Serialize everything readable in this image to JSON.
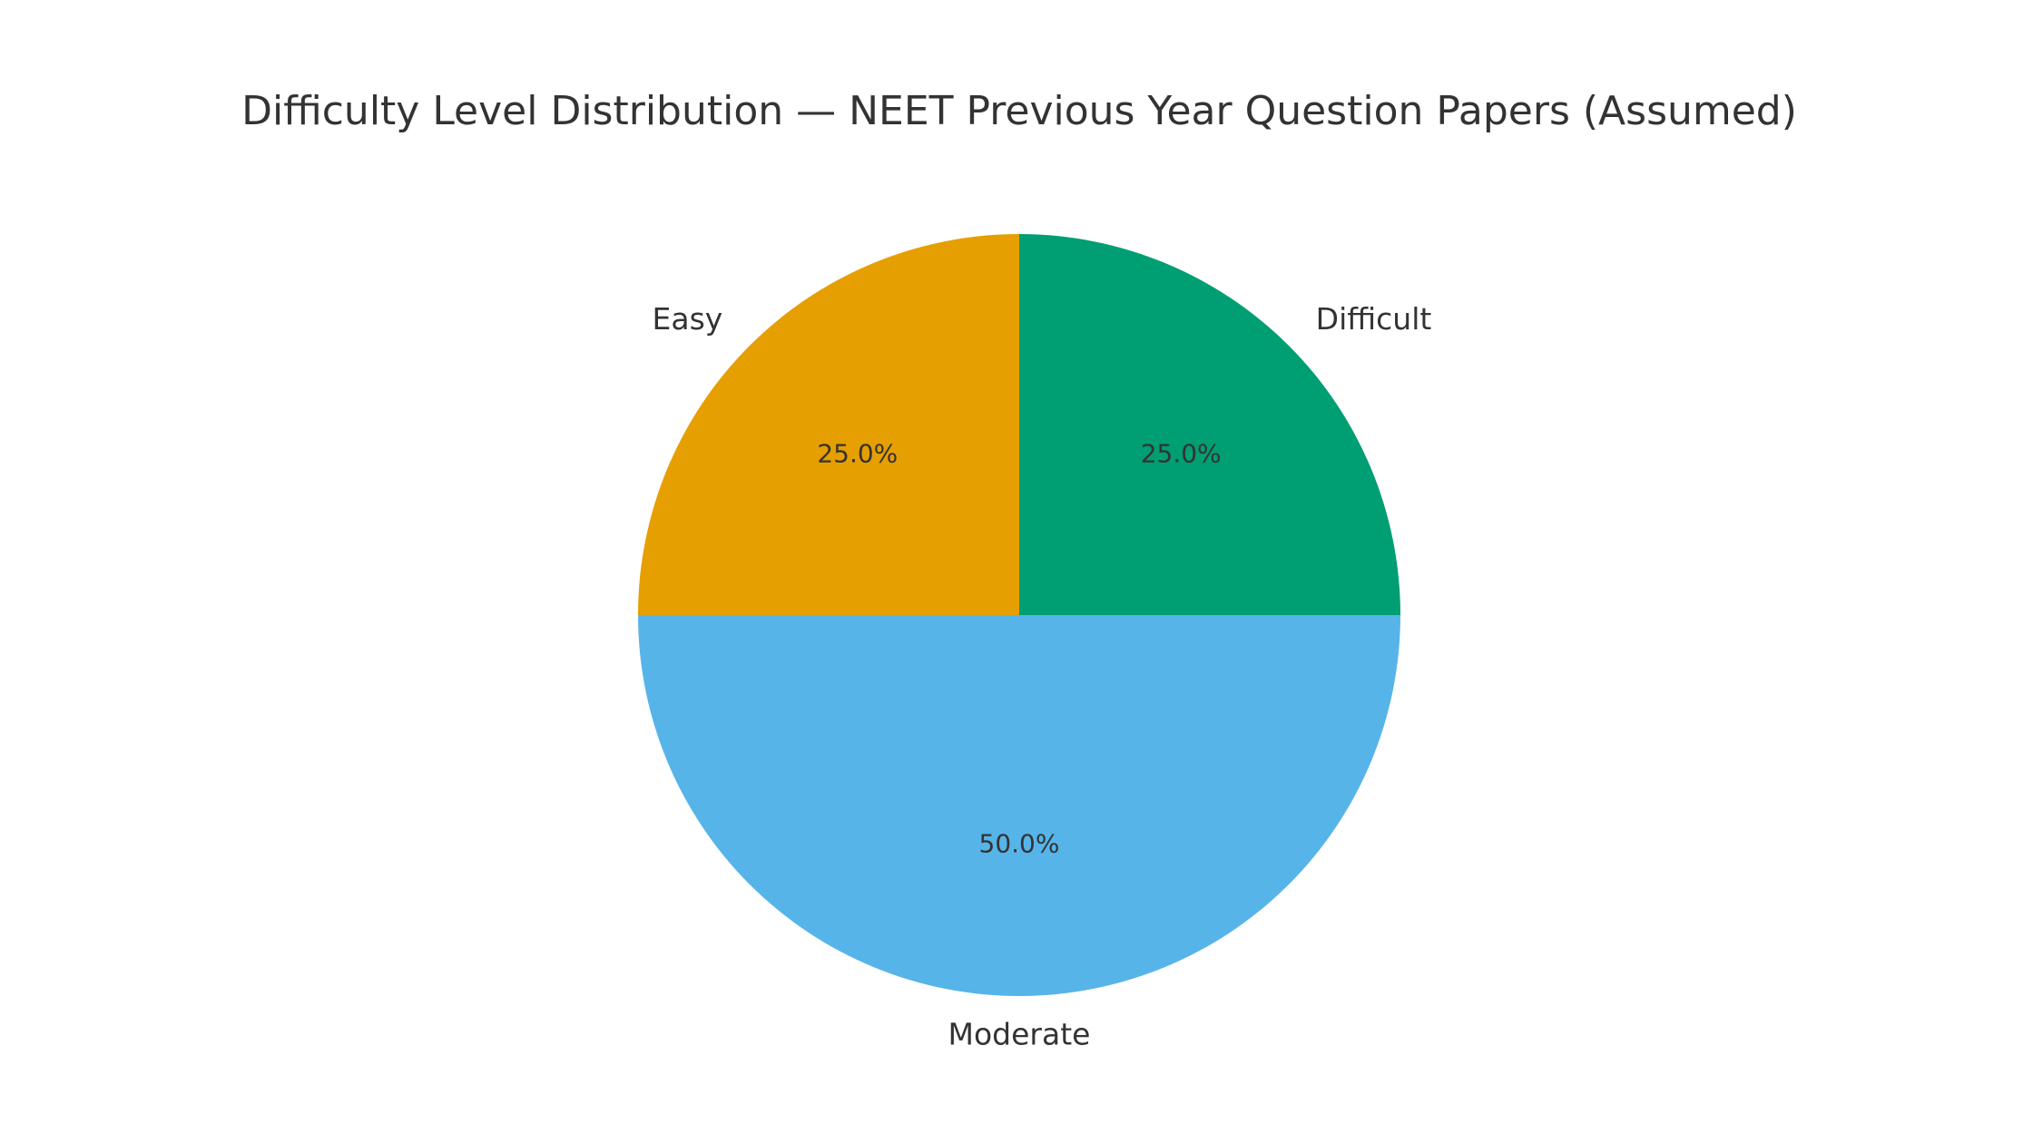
{
  "chart_data": {
    "type": "pie",
    "title": "Difficulty Level Distribution — NEET Previous Year Question Papers (Assumed)",
    "start_angle_deg": 90,
    "direction": "counterclockwise",
    "slices": [
      {
        "label": "Easy",
        "value": 25,
        "pct_label": "25.0%",
        "color": "#E69F00"
      },
      {
        "label": "Moderate",
        "value": 50,
        "pct_label": "50.0%",
        "color": "#56B4E9"
      },
      {
        "label": "Difficult",
        "value": 25,
        "pct_label": "25.0%",
        "color": "#009E73"
      }
    ]
  }
}
